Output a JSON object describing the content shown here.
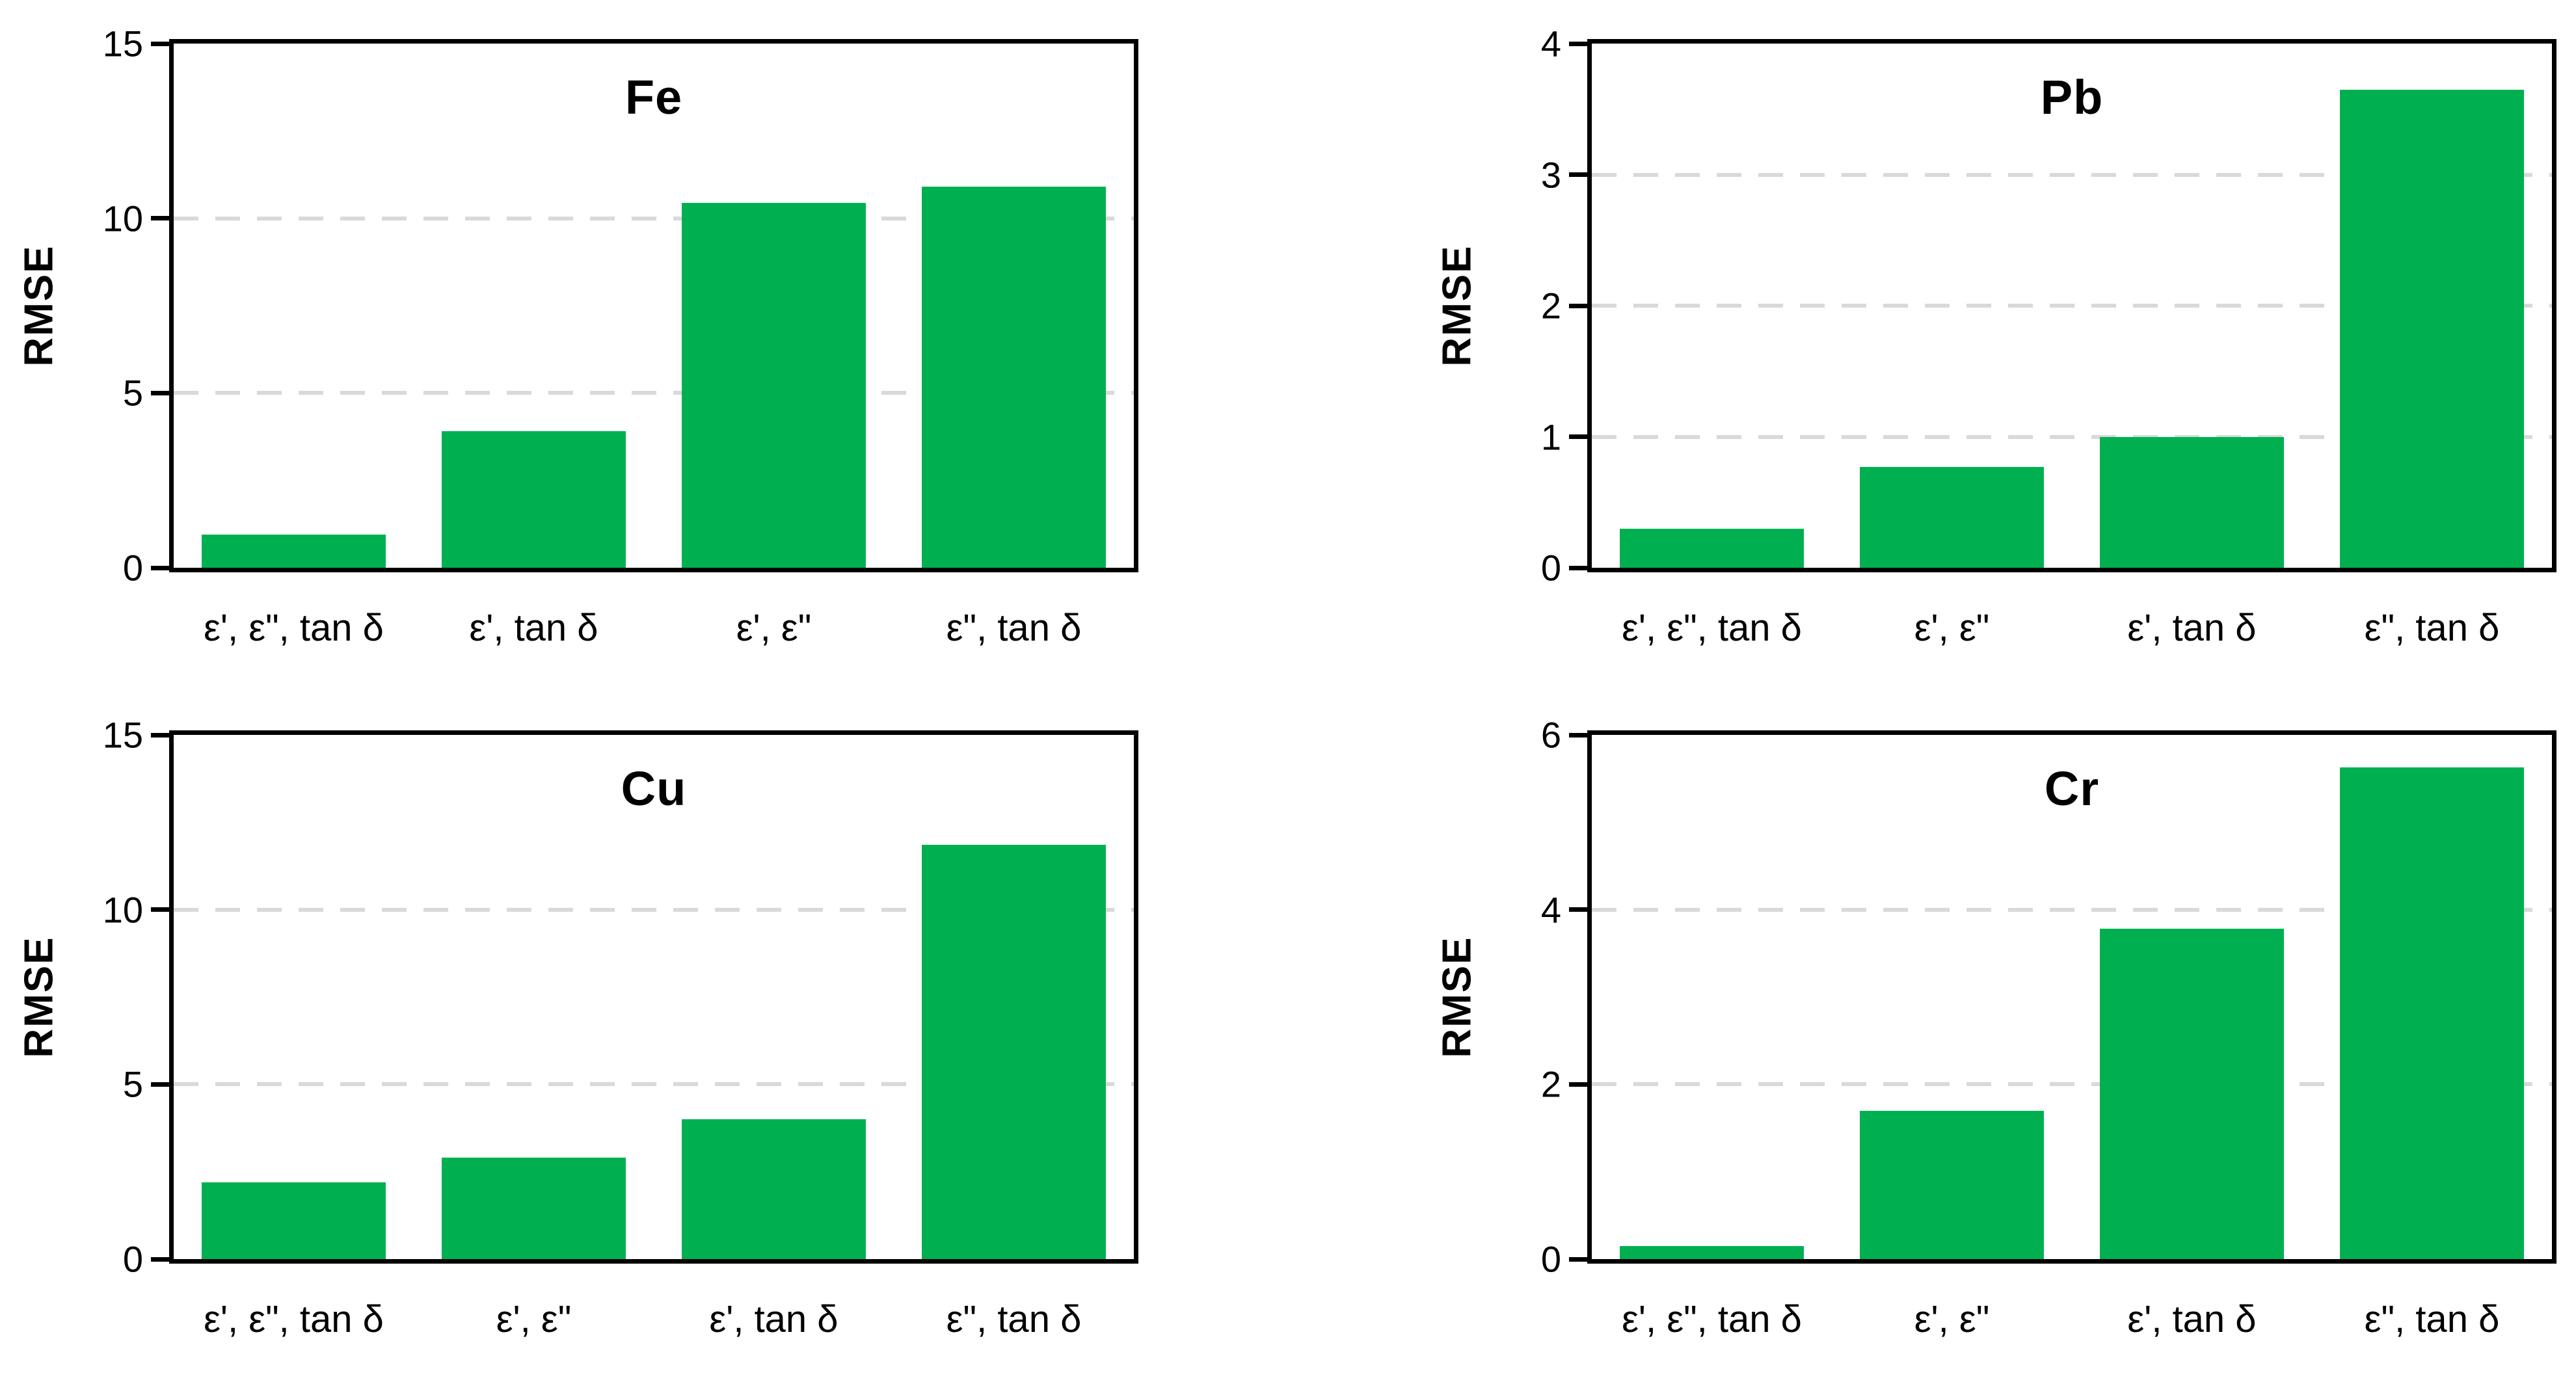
{
  "figure": {
    "background": "#ffffff",
    "bar_color": "#00B050",
    "gridline_color": "#D9D9D9",
    "axis_color": "#000000",
    "text_color": "#000000"
  },
  "chart_data": [
    {
      "type": "bar",
      "title": "Fe",
      "ylabel": "RMSE",
      "xlabel": "",
      "categories": [
        "ε', ε\", tan δ",
        "ε', tan δ",
        "ε', ε\"",
        "ε\", tan δ"
      ],
      "values": [
        0.95,
        3.9,
        10.45,
        10.9
      ],
      "ylim": [
        0,
        15
      ],
      "yticks": [
        0,
        5,
        10,
        15
      ],
      "grid": "horizontal-dashed",
      "legend": "none"
    },
    {
      "type": "bar",
      "title": "Pb",
      "ylabel": "RMSE",
      "xlabel": "",
      "categories": [
        "ε', ε\", tan δ",
        "ε', ε\"",
        "ε', tan δ",
        "ε\", tan δ"
      ],
      "values": [
        0.3,
        0.77,
        1.0,
        3.65
      ],
      "ylim": [
        0,
        4
      ],
      "yticks": [
        0,
        1,
        2,
        3,
        4
      ],
      "grid": "horizontal-dashed",
      "legend": "none"
    },
    {
      "type": "bar",
      "title": "Cu",
      "ylabel": "RMSE",
      "xlabel": "",
      "categories": [
        "ε', ε\", tan δ",
        "ε', ε\"",
        "ε', tan δ",
        "ε\", tan δ"
      ],
      "values": [
        2.2,
        2.9,
        4.0,
        11.85
      ],
      "ylim": [
        0,
        15
      ],
      "yticks": [
        0,
        5,
        10,
        15
      ],
      "grid": "horizontal-dashed",
      "legend": "none"
    },
    {
      "type": "bar",
      "title": "Cr",
      "ylabel": "RMSE",
      "xlabel": "",
      "categories": [
        "ε', ε\", tan δ",
        "ε', ε\"",
        "ε', tan δ",
        "ε\", tan δ"
      ],
      "values": [
        0.15,
        1.7,
        3.78,
        5.63
      ],
      "ylim": [
        0,
        6
      ],
      "yticks": [
        0,
        2,
        4,
        6
      ],
      "grid": "horizontal-dashed",
      "legend": "none"
    }
  ]
}
